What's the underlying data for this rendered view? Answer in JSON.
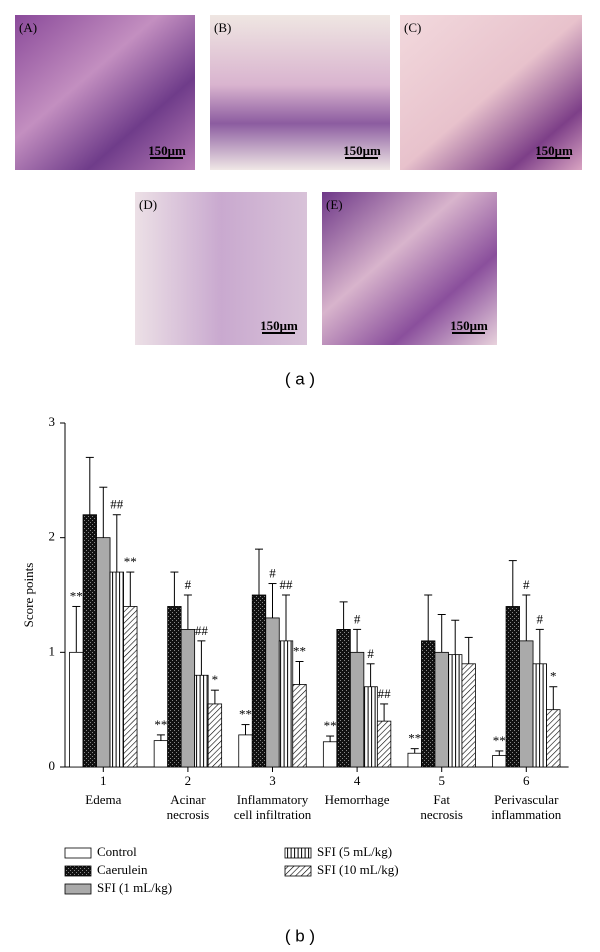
{
  "figure": {
    "panels": [
      "(A)",
      "(B)",
      "(C)",
      "(D)",
      "(E)"
    ],
    "scale_label": "150μm",
    "captions": [
      "( a )",
      "( b )"
    ]
  },
  "chart_data": {
    "type": "bar",
    "ylabel": "Score points",
    "xtick_labels": [
      "1",
      "2",
      "3",
      "4",
      "5",
      "6"
    ],
    "categories": [
      "Edema",
      "Acinar\nnecrosis",
      "Inflammatory\ncell infiltration",
      "Hemorrhage",
      "Fat\nnecrosis",
      "Perivascular\ninflammation"
    ],
    "ylim": [
      0,
      3
    ],
    "yticks": [
      0,
      1,
      2,
      3
    ],
    "series": [
      {
        "name": "Control",
        "color": "#ffffff",
        "pattern": "none",
        "values": [
          1.0,
          0.23,
          0.28,
          0.22,
          0.12,
          0.1
        ],
        "errors": [
          0.4,
          0.05,
          0.09,
          0.05,
          0.04,
          0.04
        ],
        "annotations": [
          "**",
          "**",
          "**",
          "**",
          "**",
          "**"
        ]
      },
      {
        "name": "Caerulein",
        "color": "#111111",
        "pattern": "checker",
        "values": [
          2.2,
          1.4,
          1.5,
          1.2,
          1.1,
          1.4
        ],
        "errors": [
          0.5,
          0.3,
          0.4,
          0.24,
          0.4,
          0.4
        ],
        "annotations": [
          null,
          null,
          null,
          null,
          null,
          null
        ]
      },
      {
        "name": "SFI (1 mL/kg)",
        "color": "#aaaaaa",
        "pattern": "none",
        "values": [
          2.0,
          1.2,
          1.3,
          1.0,
          1.0,
          1.1
        ],
        "errors": [
          0.44,
          0.3,
          0.3,
          0.2,
          0.33,
          0.4
        ],
        "annotations": [
          null,
          "#",
          "#",
          "#",
          null,
          "#"
        ]
      },
      {
        "name": "SFI (5 mL/kg)",
        "color": "#ffffff",
        "pattern": "vertical",
        "values": [
          1.7,
          0.8,
          1.1,
          0.7,
          0.98,
          0.9
        ],
        "errors": [
          0.5,
          0.3,
          0.4,
          0.2,
          0.3,
          0.3
        ],
        "annotations": [
          "##",
          "##",
          "##",
          "#",
          null,
          "#"
        ]
      },
      {
        "name": "SFI (10 mL/kg)",
        "color": "#ffffff",
        "pattern": "diagonal",
        "values": [
          1.4,
          0.55,
          0.72,
          0.4,
          0.9,
          0.5
        ],
        "errors": [
          0.3,
          0.12,
          0.2,
          0.15,
          0.23,
          0.2
        ],
        "annotations": [
          "**",
          "*",
          "**",
          "##",
          null,
          "*"
        ]
      }
    ]
  }
}
